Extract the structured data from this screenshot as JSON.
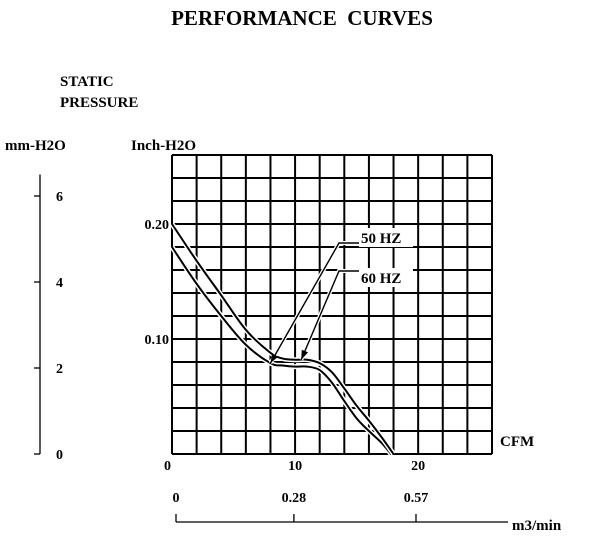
{
  "chart_data": {
    "type": "line",
    "title": "PERFORMANCE  CURVES",
    "ylabel": [
      "STATIC",
      "PRESSURE"
    ],
    "y_units_left": "mm-H2O",
    "y_units_right": "Inch-H2O",
    "xlabel": "CFM",
    "x2label": "m3/min",
    "xlim": [
      0,
      26
    ],
    "ylim": [
      0,
      0.26
    ],
    "grid": true,
    "x_ticks": [
      {
        "value": 0,
        "label": "0"
      },
      {
        "value": 10,
        "label": "10"
      },
      {
        "value": 20,
        "label": "20"
      }
    ],
    "y_ticks": [
      {
        "value": 0.1,
        "label": "0.10"
      },
      {
        "value": 0.2,
        "label": "0.20"
      }
    ],
    "mm_ticks": [
      {
        "value": 0,
        "label": "0"
      },
      {
        "value": 2,
        "label": "2"
      },
      {
        "value": 4,
        "label": "4"
      },
      {
        "value": 6,
        "label": "6"
      }
    ],
    "m3_ticks": [
      {
        "value": 0,
        "label": "0"
      },
      {
        "value": 0.28,
        "label": "0.28"
      },
      {
        "value": 0.57,
        "label": "0.57"
      }
    ],
    "series": [
      {
        "name": "50 HZ",
        "x": [
          0,
          2,
          4,
          6,
          8,
          9,
          10,
          11,
          12,
          13,
          14,
          15,
          16,
          17,
          17.8
        ],
        "y": [
          0.18,
          0.148,
          0.12,
          0.095,
          0.079,
          0.077,
          0.076,
          0.076,
          0.073,
          0.062,
          0.046,
          0.031,
          0.02,
          0.01,
          0.0
        ]
      },
      {
        "name": "60 HZ",
        "x": [
          0,
          2,
          4,
          6,
          8,
          9,
          10,
          11,
          12,
          13,
          14,
          15,
          16,
          17,
          18
        ],
        "y": [
          0.2,
          0.168,
          0.138,
          0.108,
          0.088,
          0.083,
          0.082,
          0.082,
          0.079,
          0.071,
          0.057,
          0.042,
          0.029,
          0.015,
          0.0
        ]
      }
    ],
    "annotations": [
      {
        "text": "50 HZ",
        "series": "50 HZ",
        "at_x": 8
      },
      {
        "text": "60 HZ",
        "series": "60 HZ",
        "at_x": 10.5
      }
    ]
  }
}
